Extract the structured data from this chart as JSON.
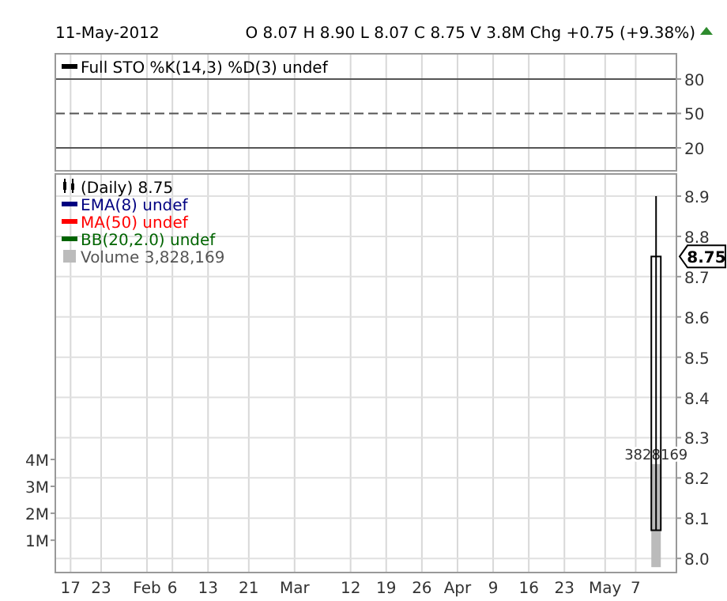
{
  "chart_data": [
    {
      "type": "line",
      "subtitle": "11-May-2012",
      "annotations": [
        "O 8.07 H 8.90 L 8.07 C 8.75 V 3.8M Chg +0.75 (+9.38%)"
      ],
      "tick_labels": "y",
      "ylim": [
        0,
        102
      ],
      "yticks": [
        20,
        50,
        80
      ],
      "grid": "x",
      "legend": "top left",
      "ref_lines": [
        {
          "axis": "y",
          "value": 80,
          "color": "#555555"
        },
        {
          "axis": "y",
          "value": 50,
          "color": "#555555",
          "line_style": "dashed"
        },
        {
          "axis": "y",
          "value": 20,
          "color": "#555555"
        }
      ],
      "series": [
        {
          "name": "Full STO %K(14,3) %D(3) undef",
          "color": "#000000"
        }
      ]
    },
    {
      "type": "candlestick",
      "x": [
        "2012-05-11"
      ],
      "xlim": [
        "2012-01-14",
        "2012-05-15"
      ],
      "xticks": [
        {
          "value": "2012-01-17",
          "label": "17"
        },
        {
          "value": "2012-01-23",
          "label": "23"
        },
        {
          "value": "2012-02-01",
          "label": "Feb"
        },
        {
          "value": "2012-02-06",
          "label": "6"
        },
        {
          "value": "2012-02-13",
          "label": "13"
        },
        {
          "value": "2012-02-21",
          "label": "21"
        },
        {
          "value": "2012-03-01",
          "label": "Mar"
        },
        {
          "value": "2012-03-12",
          "label": "12"
        },
        {
          "value": "2012-03-19",
          "label": "19"
        },
        {
          "value": "2012-03-26",
          "label": "26"
        },
        {
          "value": "2012-04-02",
          "label": "Apr"
        },
        {
          "value": "2012-04-09",
          "label": "9"
        },
        {
          "value": "2012-04-16",
          "label": "16"
        },
        {
          "value": "2012-04-23",
          "label": "23"
        },
        {
          "value": "2012-05-01",
          "label": "May"
        },
        {
          "value": "2012-05-07",
          "label": "7"
        }
      ],
      "ylim": [
        7.965,
        8.955
      ],
      "yticks": [
        {
          "value": 8,
          "label": "8.0"
        },
        8.1,
        8.2,
        8.3,
        8.4,
        8.5,
        8.6,
        8.7,
        8.8,
        8.9
      ],
      "y2lim": [
        -200000,
        14600000
      ],
      "y2ticks": [
        {
          "value": 1000000,
          "label": "1M"
        },
        {
          "value": 2000000,
          "label": "2M"
        },
        {
          "value": 3000000,
          "label": "3M"
        },
        {
          "value": 4000000,
          "label": "4M"
        }
      ],
      "grid": true,
      "legend": "top left",
      "annotations": [
        "8.75"
      ],
      "series": [
        {
          "name": "(Daily) 8.75",
          "color": "#000000",
          "ohlc": [
            [
              8.07,
              8.9,
              8.07,
              8.75
            ]
          ]
        },
        {
          "name": "EMA(8) undef",
          "type": "line",
          "color": "#000080",
          "values": [
            null
          ]
        },
        {
          "name": "MA(50) undef",
          "type": "line",
          "color": "#ff0000",
          "values": [
            null
          ]
        },
        {
          "name": "BB(20,2.0) undef",
          "type": "line",
          "color": "#006400",
          "values": [
            null
          ]
        },
        {
          "name": "Volume 3,828,169",
          "type": "bar",
          "axis": "y2",
          "color": "#bbbbbb",
          "values": [
            3828169
          ],
          "value_labels": [
            "3828169"
          ]
        }
      ]
    }
  ]
}
